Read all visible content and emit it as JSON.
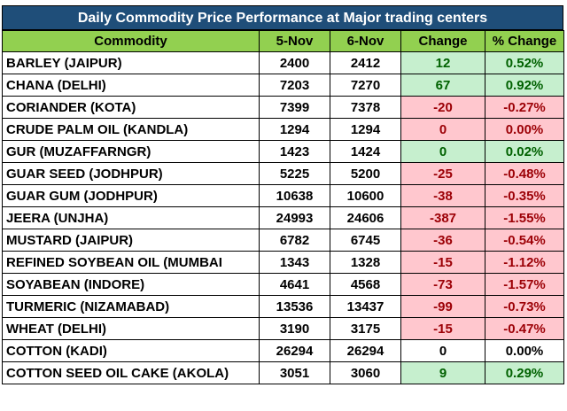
{
  "title": "Daily Commodity Price Performance at Major trading centers",
  "headers": [
    "Commodity",
    "5-Nov",
    "6-Nov",
    "Change",
    "% Change"
  ],
  "rows": [
    {
      "commodity": "BARLEY (JAIPUR)",
      "nov5": "2400",
      "nov6": "2412",
      "change": "12",
      "pct": "0.52%",
      "status": "pos"
    },
    {
      "commodity": "CHANA (DELHI)",
      "nov5": "7203",
      "nov6": "7270",
      "change": "67",
      "pct": "0.92%",
      "status": "pos"
    },
    {
      "commodity": "CORIANDER (KOTA)",
      "nov5": "7399",
      "nov6": "7378",
      "change": "-20",
      "pct": "-0.27%",
      "status": "neg"
    },
    {
      "commodity": "CRUDE PALM OIL (KANDLA)",
      "nov5": "1294",
      "nov6": "1294",
      "change": "0",
      "pct": "0.00%",
      "status": "neg"
    },
    {
      "commodity": "GUR (MUZAFFARNGR)",
      "nov5": "1423",
      "nov6": "1424",
      "change": "0",
      "pct": "0.02%",
      "status": "pos"
    },
    {
      "commodity": "GUAR SEED (JODHPUR)",
      "nov5": "5225",
      "nov6": "5200",
      "change": "-25",
      "pct": "-0.48%",
      "status": "neg"
    },
    {
      "commodity": "GUAR GUM (JODHPUR)",
      "nov5": "10638",
      "nov6": "10600",
      "change": "-38",
      "pct": "-0.35%",
      "status": "neg"
    },
    {
      "commodity": "JEERA (UNJHA)",
      "nov5": "24993",
      "nov6": "24606",
      "change": "-387",
      "pct": "-1.55%",
      "status": "neg"
    },
    {
      "commodity": "MUSTARD (JAIPUR)",
      "nov5": "6782",
      "nov6": "6745",
      "change": "-36",
      "pct": "-0.54%",
      "status": "neg"
    },
    {
      "commodity": "REFINED SOYBEAN OIL (MUMBAI",
      "nov5": "1343",
      "nov6": "1328",
      "change": "-15",
      "pct": "-1.12%",
      "status": "neg"
    },
    {
      "commodity": "SOYABEAN (INDORE)",
      "nov5": "4641",
      "nov6": "4568",
      "change": "-73",
      "pct": "-1.57%",
      "status": "neg"
    },
    {
      "commodity": "TURMERIC (NIZAMABAD)",
      "nov5": "13536",
      "nov6": "13437",
      "change": "-99",
      "pct": "-0.73%",
      "status": "neg"
    },
    {
      "commodity": "WHEAT (DELHI)",
      "nov5": "3190",
      "nov6": "3175",
      "change": "-15",
      "pct": "-0.47%",
      "status": "neg"
    },
    {
      "commodity": "COTTON (KADI)",
      "nov5": "26294",
      "nov6": "26294",
      "change": "0",
      "pct": "0.00%",
      "status": "neu"
    },
    {
      "commodity": "COTTON SEED OIL CAKE (AKOLA)",
      "nov5": "3051",
      "nov6": "3060",
      "change": "9",
      "pct": "0.29%",
      "status": "pos"
    }
  ],
  "colors": {
    "title_bg": "#1f4e79",
    "header_bg": "#92d050",
    "positive_bg": "#c6efce",
    "positive_text": "#006100",
    "negative_bg": "#ffc7ce",
    "negative_text": "#9c0006"
  }
}
